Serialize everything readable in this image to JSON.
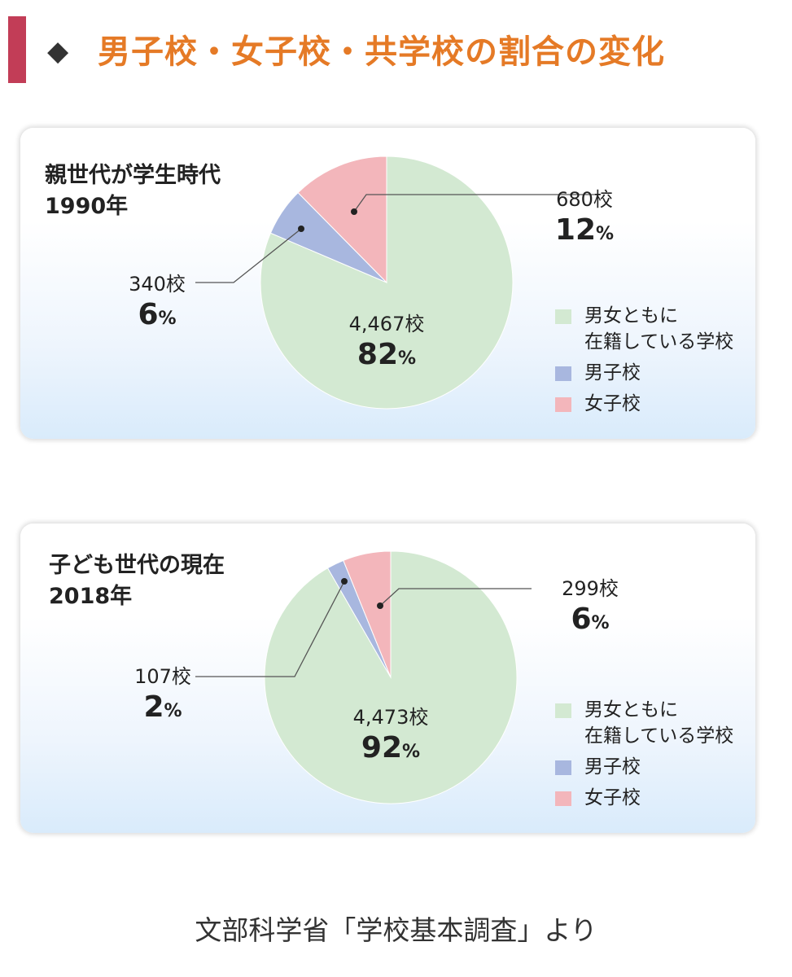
{
  "title": "男子校・女子校・共学校の割合の変化",
  "diamond": "◆",
  "source": "文部科学省「学校基本調査」より",
  "legend": [
    {
      "label_lines": [
        "男女ともに",
        "在籍している学校"
      ],
      "color": "#d3e9d2"
    },
    {
      "label_lines": [
        "男子校"
      ],
      "color": "#a8b7df"
    },
    {
      "label_lines": [
        "女子校"
      ],
      "color": "#f3b6bb"
    }
  ],
  "colors": {
    "title": "#e57a26",
    "accent_bar": "#c23d57",
    "coed": "#d3e9d2",
    "boys": "#a8b7df",
    "girls": "#f3b6bb"
  },
  "chart_data": [
    {
      "type": "pie",
      "title_lines": [
        "親世代が学生時代",
        "1990年"
      ],
      "slices": [
        {
          "name": "男女ともに在籍している学校",
          "count_label": "4,467校",
          "percent": 82,
          "value": 4467
        },
        {
          "name": "男子校",
          "count_label": "340校",
          "percent": 6,
          "value": 340
        },
        {
          "name": "女子校",
          "count_label": "680校",
          "percent": 12,
          "value": 680
        }
      ]
    },
    {
      "type": "pie",
      "title_lines": [
        "子ども世代の現在",
        "2018年"
      ],
      "slices": [
        {
          "name": "男女ともに在籍している学校",
          "count_label": "4,473校",
          "percent": 92,
          "value": 4473
        },
        {
          "name": "男子校",
          "count_label": "107校",
          "percent": 2,
          "value": 107
        },
        {
          "name": "女子校",
          "count_label": "299校",
          "percent": 6,
          "value": 299
        }
      ]
    }
  ]
}
